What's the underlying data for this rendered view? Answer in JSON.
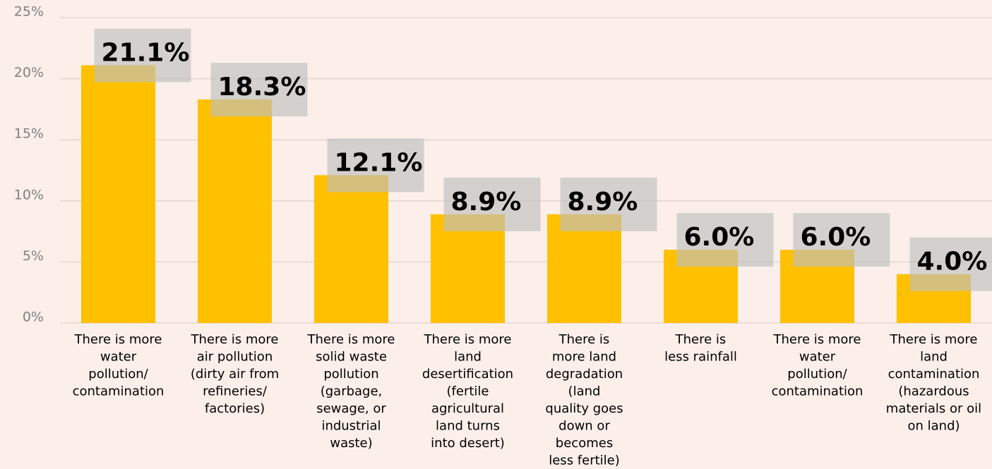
{
  "chart_data": {
    "type": "bar",
    "categories": [
      "There is more\nwater\npollution/\ncontamination",
      "There is more\nair pollution\n(dirty air from\nrefineries/\nfactories)",
      "There is more\nsolid waste\npollution\n(garbage,\nsewage, or\nindustrial\nwaste)",
      "There is more\nland\ndesertification\n(fertile\nagricultural\nland turns\ninto desert)",
      "There is\nmore land\ndegradation\n(land\nquality goes\ndown or\nbecomes\nless fertile)",
      "There is\nless rainfall",
      "There is more\nwater\npollution/\ncontamination",
      "There is more\nland\ncontamination\n(hazardous\nmaterials or oil\non land)"
    ],
    "values": [
      21.1,
      18.3,
      12.1,
      8.9,
      8.9,
      6.0,
      6.0,
      4.0
    ],
    "value_labels": [
      "21.1%",
      "18.3%",
      "12.1%",
      "8.9%",
      "8.9%",
      "6.0%",
      "6.0%",
      "4.0%"
    ],
    "color": "#ffc000",
    "ylim": [
      0,
      25
    ],
    "yticks": [
      {
        "value": 0,
        "label": "0%"
      },
      {
        "value": 5,
        "label": "5%"
      },
      {
        "value": 10,
        "label": "10%"
      },
      {
        "value": 15,
        "label": "15%"
      },
      {
        "value": 20,
        "label": "20%"
      },
      {
        "value": 25,
        "label": "25%"
      }
    ],
    "grid": true
  }
}
